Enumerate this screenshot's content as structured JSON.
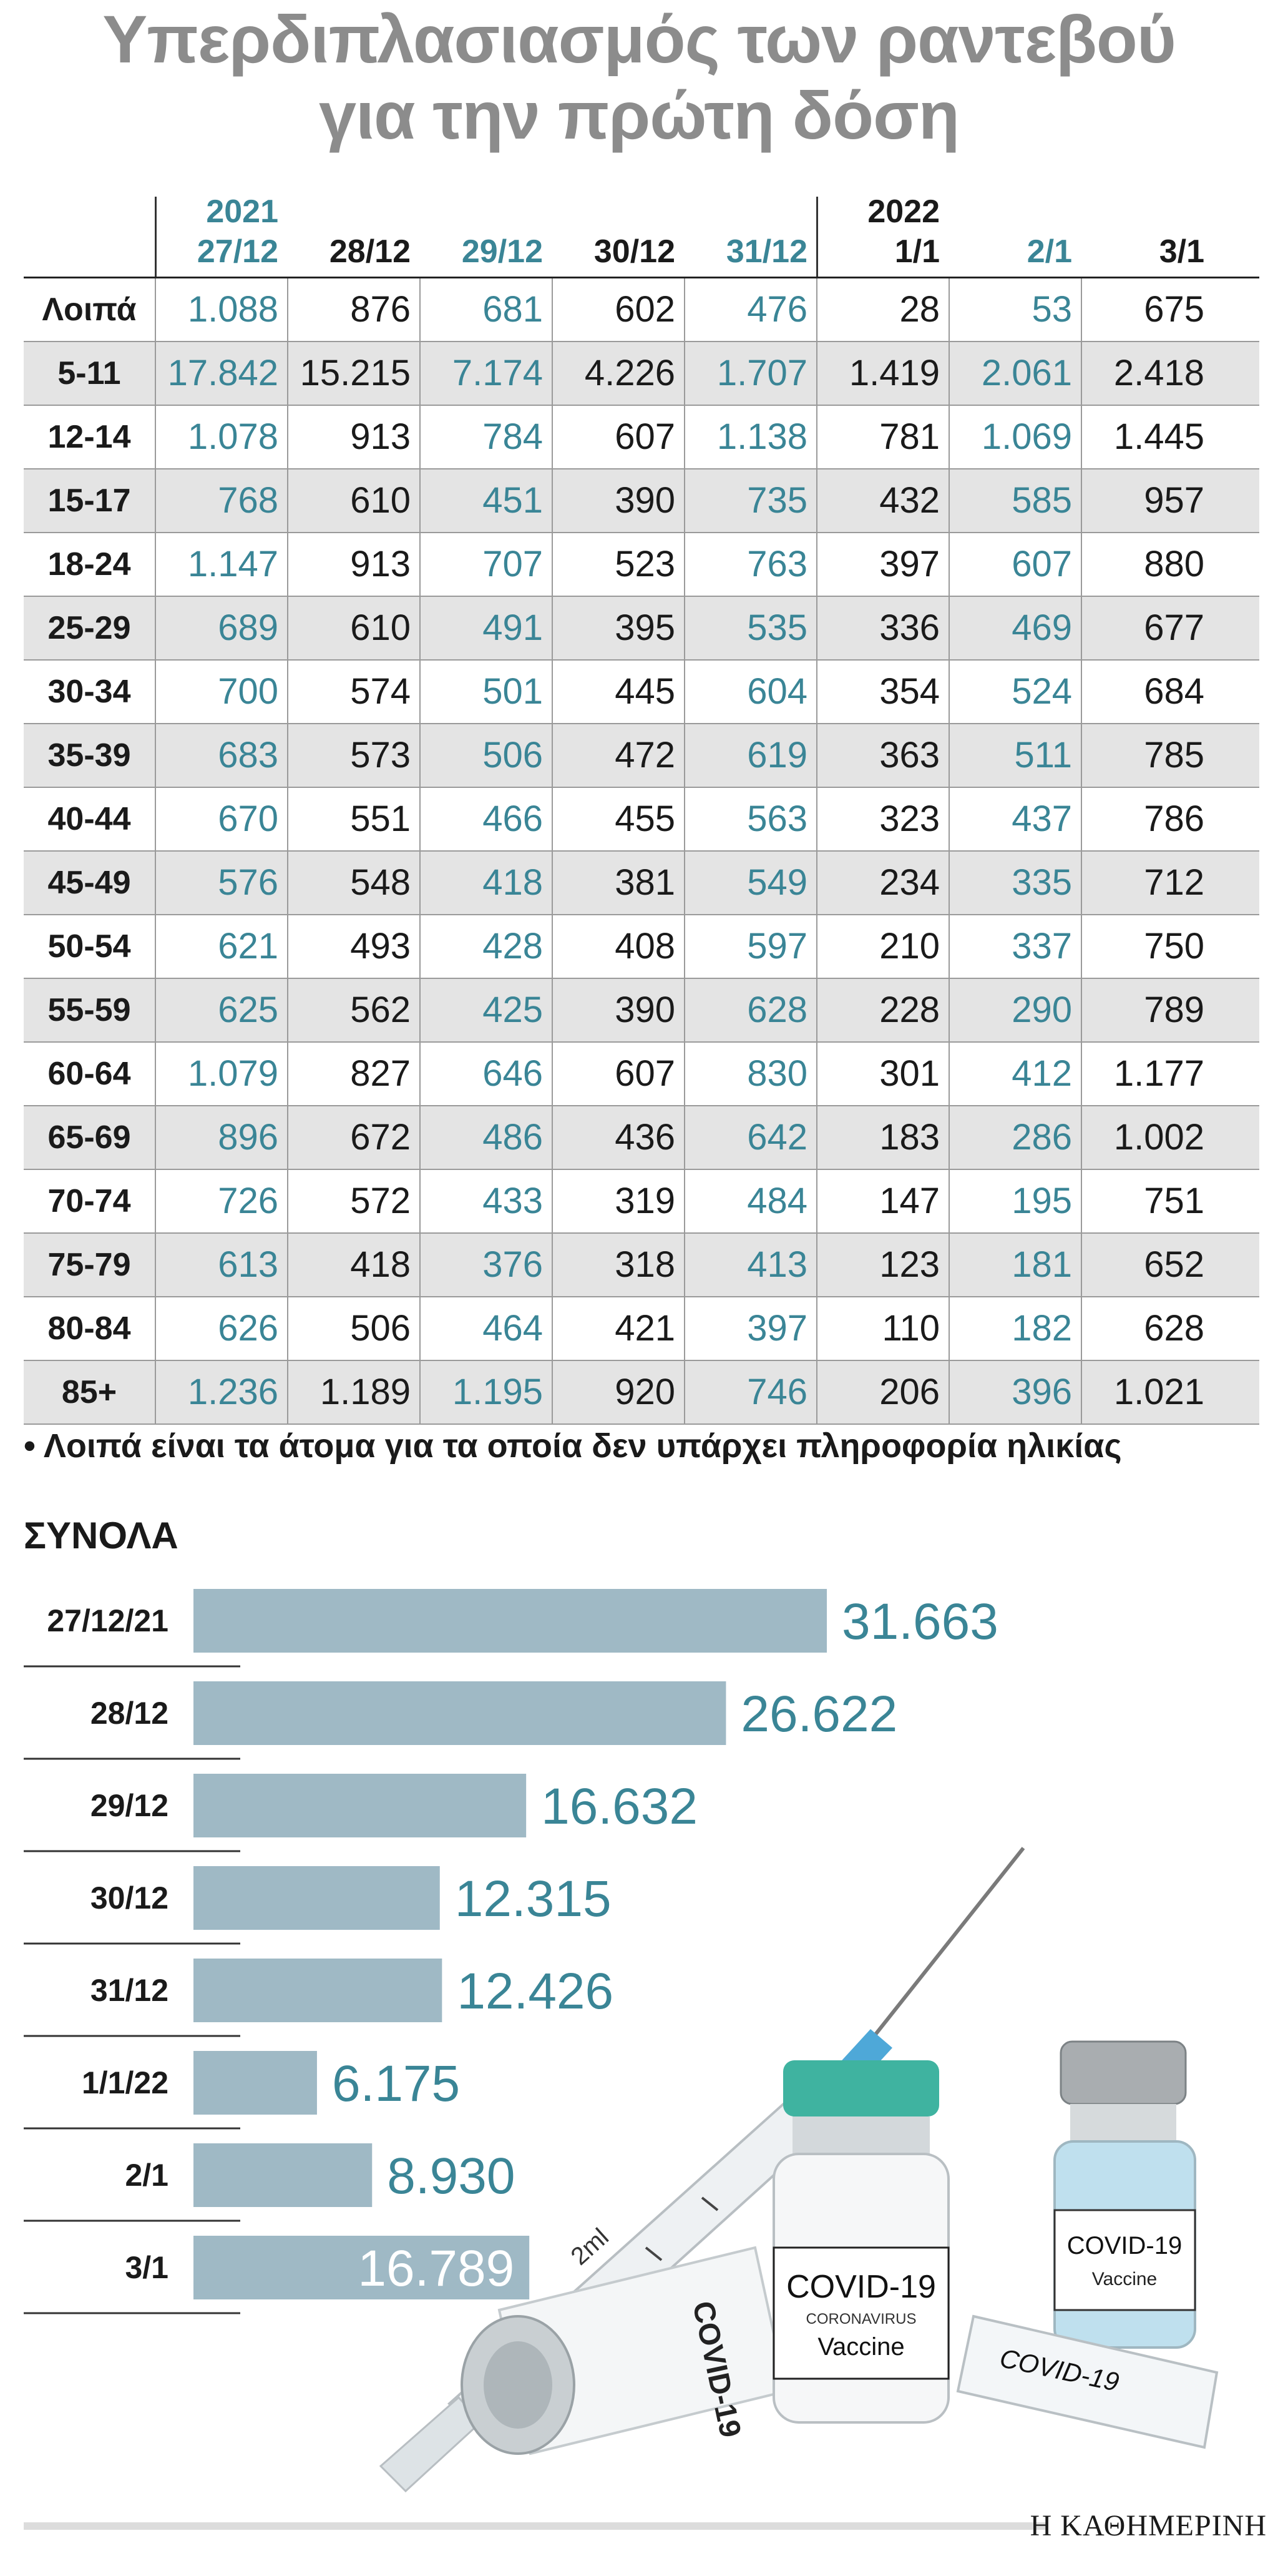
{
  "title": {
    "line1": "Υπερδιπλασιασμός των ραντεβού",
    "line2": "για την πρώτη δόση"
  },
  "table": {
    "columns": [
      {
        "year": "2021",
        "date": "27/12",
        "color": "teal"
      },
      {
        "year": "",
        "date": "28/12",
        "color": "black"
      },
      {
        "year": "",
        "date": "29/12",
        "color": "teal"
      },
      {
        "year": "",
        "date": "30/12",
        "color": "black"
      },
      {
        "year": "",
        "date": "31/12",
        "color": "teal"
      },
      {
        "year": "2022",
        "date": "1/1",
        "color": "black"
      },
      {
        "year": "",
        "date": "2/1",
        "color": "teal"
      },
      {
        "year": "",
        "date": "3/1",
        "color": "black"
      }
    ],
    "rows": [
      {
        "label": "Λοιπά",
        "values": [
          "1.088",
          "876",
          "681",
          "602",
          "476",
          "28",
          "53",
          "675"
        ]
      },
      {
        "label": "5-11",
        "values": [
          "17.842",
          "15.215",
          "7.174",
          "4.226",
          "1.707",
          "1.419",
          "2.061",
          "2.418"
        ]
      },
      {
        "label": "12-14",
        "values": [
          "1.078",
          "913",
          "784",
          "607",
          "1.138",
          "781",
          "1.069",
          "1.445"
        ]
      },
      {
        "label": "15-17",
        "values": [
          "768",
          "610",
          "451",
          "390",
          "735",
          "432",
          "585",
          "957"
        ]
      },
      {
        "label": "18-24",
        "values": [
          "1.147",
          "913",
          "707",
          "523",
          "763",
          "397",
          "607",
          "880"
        ]
      },
      {
        "label": "25-29",
        "values": [
          "689",
          "610",
          "491",
          "395",
          "535",
          "336",
          "469",
          "677"
        ]
      },
      {
        "label": "30-34",
        "values": [
          "700",
          "574",
          "501",
          "445",
          "604",
          "354",
          "524",
          "684"
        ]
      },
      {
        "label": "35-39",
        "values": [
          "683",
          "573",
          "506",
          "472",
          "619",
          "363",
          "511",
          "785"
        ]
      },
      {
        "label": "40-44",
        "values": [
          "670",
          "551",
          "466",
          "455",
          "563",
          "323",
          "437",
          "786"
        ]
      },
      {
        "label": "45-49",
        "values": [
          "576",
          "548",
          "418",
          "381",
          "549",
          "234",
          "335",
          "712"
        ]
      },
      {
        "label": "50-54",
        "values": [
          "621",
          "493",
          "428",
          "408",
          "597",
          "210",
          "337",
          "750"
        ]
      },
      {
        "label": "55-59",
        "values": [
          "625",
          "562",
          "425",
          "390",
          "628",
          "228",
          "290",
          "789"
        ]
      },
      {
        "label": "60-64",
        "values": [
          "1.079",
          "827",
          "646",
          "607",
          "830",
          "301",
          "412",
          "1.177"
        ]
      },
      {
        "label": "65-69",
        "values": [
          "896",
          "672",
          "486",
          "436",
          "642",
          "183",
          "286",
          "1.002"
        ]
      },
      {
        "label": "70-74",
        "values": [
          "726",
          "572",
          "433",
          "319",
          "484",
          "147",
          "195",
          "751"
        ]
      },
      {
        "label": "75-79",
        "values": [
          "613",
          "418",
          "376",
          "318",
          "413",
          "123",
          "181",
          "652"
        ]
      },
      {
        "label": "80-84",
        "values": [
          "626",
          "506",
          "464",
          "421",
          "397",
          "110",
          "182",
          "628"
        ]
      },
      {
        "label": "85+",
        "values": [
          "1.236",
          "1.189",
          "1.195",
          "920",
          "746",
          "206",
          "396",
          "1.021"
        ]
      }
    ]
  },
  "note": "• Λοιπά είναι τα άτομα για τα οποία δεν υπάρχει πληροφορία ηλικίας",
  "chart_data": {
    "type": "bar",
    "orientation": "horizontal",
    "title": "ΣΥΝΟΛΑ",
    "categories": [
      "27/12/21",
      "28/12",
      "29/12",
      "30/12",
      "31/12",
      "1/1/22",
      "2/1",
      "3/1"
    ],
    "values": [
      31663,
      26622,
      16632,
      12315,
      12426,
      6175,
      8930,
      16789
    ],
    "value_labels": [
      "31.663",
      "26.622",
      "16.632",
      "12.315",
      "12.426",
      "6.175",
      "8.930",
      "16.789"
    ],
    "xlim": [
      0,
      31663
    ],
    "bar_color": "#9fb9c5",
    "label_color": "#3a8596",
    "grid": false
  },
  "colors": {
    "teal": "#3a8596",
    "black": "#1a1a1a",
    "title_gray": "#8c8c8c",
    "row_shade": "#e4e4e4"
  },
  "image": {
    "bottle_label_main": "COVID-19",
    "bottle_label_sub": "CORONAVIRUS",
    "bottle_label_word": "Vaccine",
    "syringe_mark": "2ml"
  },
  "footer": {
    "brand": "Η ΚΑΘΗΜΕΡΙΝΗ"
  }
}
